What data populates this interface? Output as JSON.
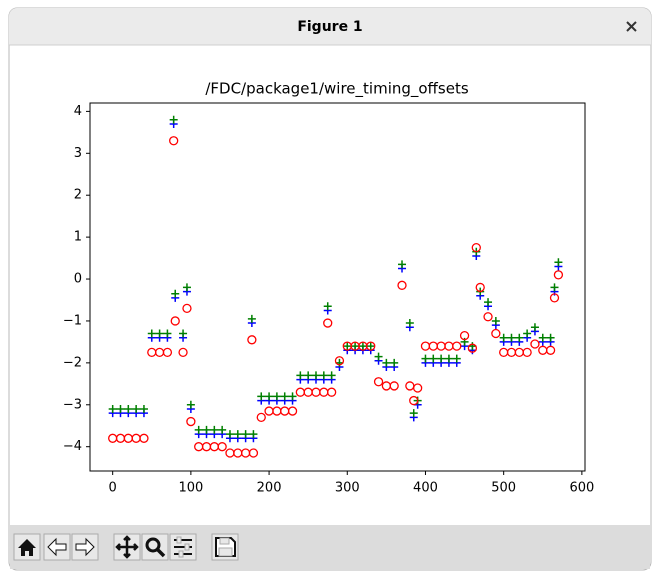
{
  "window": {
    "title": "Figure 1"
  },
  "chart_data": {
    "type": "scatter",
    "title": "/FDC/package1/wire_timing_offsets",
    "x": [
      0,
      10,
      20,
      30,
      40,
      50,
      60,
      70,
      78,
      80,
      90,
      95,
      100,
      110,
      120,
      130,
      140,
      150,
      160,
      170,
      178,
      180,
      190,
      200,
      210,
      220,
      230,
      240,
      250,
      260,
      270,
      275,
      280,
      290,
      300,
      310,
      320,
      330,
      340,
      350,
      360,
      370,
      380,
      385,
      390,
      400,
      410,
      420,
      430,
      440,
      450,
      460,
      465,
      470,
      480,
      490,
      500,
      510,
      520,
      530,
      540,
      550,
      560,
      565,
      570
    ],
    "series": [
      {
        "marker": "+",
        "color": "#0000ff",
        "values": [
          -3.2,
          -3.2,
          -3.2,
          -3.2,
          -3.2,
          -1.4,
          -1.4,
          -1.4,
          3.7,
          -0.45,
          -1.4,
          -0.3,
          -3.1,
          -3.7,
          -3.7,
          -3.7,
          -3.7,
          -3.8,
          -3.8,
          -3.8,
          -1.05,
          -3.8,
          -2.9,
          -2.9,
          -2.9,
          -2.9,
          -2.9,
          -2.4,
          -2.4,
          -2.4,
          -2.4,
          -0.75,
          -2.4,
          -2.1,
          -1.7,
          -1.7,
          -1.7,
          -1.7,
          -1.95,
          -2.1,
          -2.1,
          0.25,
          -1.15,
          -3.3,
          -3.0,
          -2.0,
          -2.0,
          -2.0,
          -2.0,
          -2.0,
          -1.6,
          -1.7,
          0.55,
          -0.4,
          -0.65,
          -1.1,
          -1.5,
          -1.5,
          -1.5,
          -1.4,
          -1.25,
          -1.5,
          -1.5,
          -0.3,
          0.3
        ]
      },
      {
        "marker": "+",
        "color": "#008000",
        "values": [
          -3.1,
          -3.1,
          -3.1,
          -3.1,
          -3.1,
          -1.3,
          -1.3,
          -1.3,
          3.8,
          -0.35,
          -1.3,
          -0.2,
          -3.0,
          -3.6,
          -3.6,
          -3.6,
          -3.6,
          -3.7,
          -3.7,
          -3.7,
          -0.95,
          -3.7,
          -2.8,
          -2.8,
          -2.8,
          -2.8,
          -2.8,
          -2.3,
          -2.3,
          -2.3,
          -2.3,
          -0.65,
          -2.3,
          -2.0,
          -1.6,
          -1.6,
          -1.6,
          -1.6,
          -1.85,
          -2.0,
          -2.0,
          0.35,
          -1.05,
          -3.2,
          -2.9,
          -1.9,
          -1.9,
          -1.9,
          -1.9,
          -1.9,
          -1.5,
          -1.6,
          0.65,
          -0.3,
          -0.55,
          -1.0,
          -1.4,
          -1.4,
          -1.4,
          -1.3,
          -1.15,
          -1.4,
          -1.4,
          -0.2,
          0.4
        ]
      },
      {
        "marker": "o",
        "color": "#ff0000",
        "values": [
          -3.8,
          -3.8,
          -3.8,
          -3.8,
          -3.8,
          -1.75,
          -1.75,
          -1.75,
          3.3,
          -1.0,
          -1.75,
          -0.7,
          -3.4,
          -4.0,
          -4.0,
          -4.0,
          -4.0,
          -4.15,
          -4.15,
          -4.15,
          -1.45,
          -4.15,
          -3.3,
          -3.15,
          -3.15,
          -3.15,
          -3.15,
          -2.7,
          -2.7,
          -2.7,
          -2.7,
          -1.05,
          -2.7,
          -1.95,
          -1.6,
          -1.6,
          -1.6,
          -1.6,
          -2.45,
          -2.55,
          -2.55,
          -0.15,
          -2.55,
          -2.9,
          -2.6,
          -1.6,
          -1.6,
          -1.6,
          -1.6,
          -1.6,
          -1.35,
          -1.65,
          0.75,
          -0.2,
          -0.9,
          -1.3,
          -1.75,
          -1.75,
          -1.75,
          -1.75,
          -1.55,
          -1.7,
          -1.7,
          -0.45,
          0.1
        ]
      }
    ],
    "xlim": [
      -29,
      604
    ],
    "ylim": [
      -4.58,
      4.2
    ],
    "xticks": [
      0,
      100,
      200,
      300,
      400,
      500,
      600
    ],
    "yticks": [
      {
        "value": -4,
        "label": "−4"
      },
      {
        "value": -3,
        "label": "−3"
      },
      {
        "value": -2,
        "label": "−2"
      },
      {
        "value": -1,
        "label": "−1"
      },
      0,
      1,
      2,
      3,
      4
    ]
  }
}
